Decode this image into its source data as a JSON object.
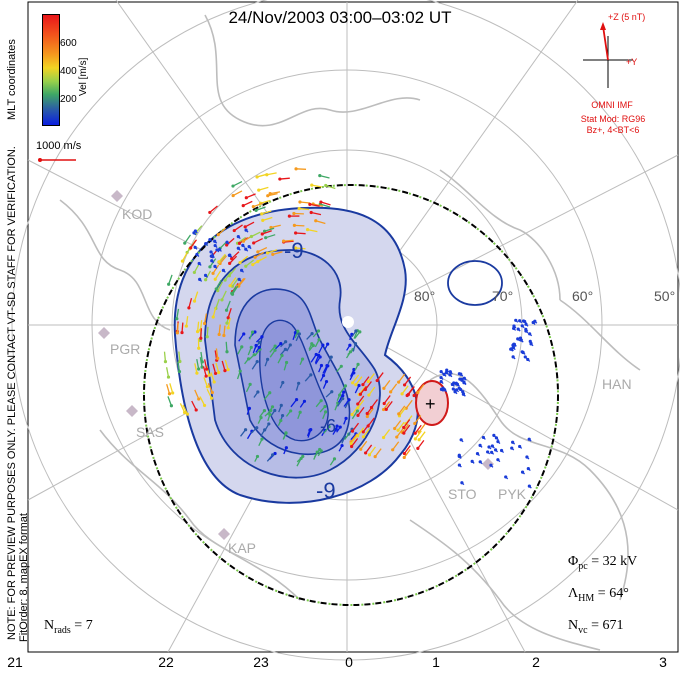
{
  "title": "24/Nov/2003 03:00–03:02 UT",
  "colorbar": {
    "ticks": [
      "600",
      "400",
      "200"
    ],
    "label": "Vel [m/s]",
    "colors": [
      "#e8161a",
      "#f59a1e",
      "#f2d423",
      "#9ad04a",
      "#3fa865",
      "#2a5ba8",
      "#0a1ee0"
    ]
  },
  "side_notes": {
    "coords": "MLT coordinates",
    "preview": "NOTE: FOR PREVIEW PURPOSES ONLY. PLEASE CONTACT VT-SD STAFF FOR VERIFICATION.",
    "fitorder": "FitOrder: 8, mapEX format"
  },
  "scale_vector": "1000 m/s",
  "imf": {
    "z_label": "+Z (5 nT)",
    "y_label": "+Y",
    "source": "OMNI IMF",
    "stat_mod": "Stat Mod: RG96",
    "condition": "Bz+, 4<BT<6"
  },
  "stats": {
    "phi_pc": "32 kV",
    "lambda_hm": "64°",
    "n_vc": "671",
    "n_rads": "7"
  },
  "mlt_ticks": [
    "21",
    "22",
    "23",
    "0",
    "1",
    "2",
    "3"
  ],
  "latitude_labels": [
    "80°",
    "70°",
    "60°",
    "50°"
  ],
  "stations": [
    "KOD",
    "PGR",
    "SAS",
    "KAP",
    "STO",
    "PYK",
    "HAN"
  ],
  "contour_labels": [
    "-9",
    "-9",
    "-6",
    "+"
  ],
  "colors": {
    "contour": "#1a3aa0",
    "fill": "#c9cdea",
    "imf": "#e01010",
    "boundary_dash": "#7ac94a"
  }
}
